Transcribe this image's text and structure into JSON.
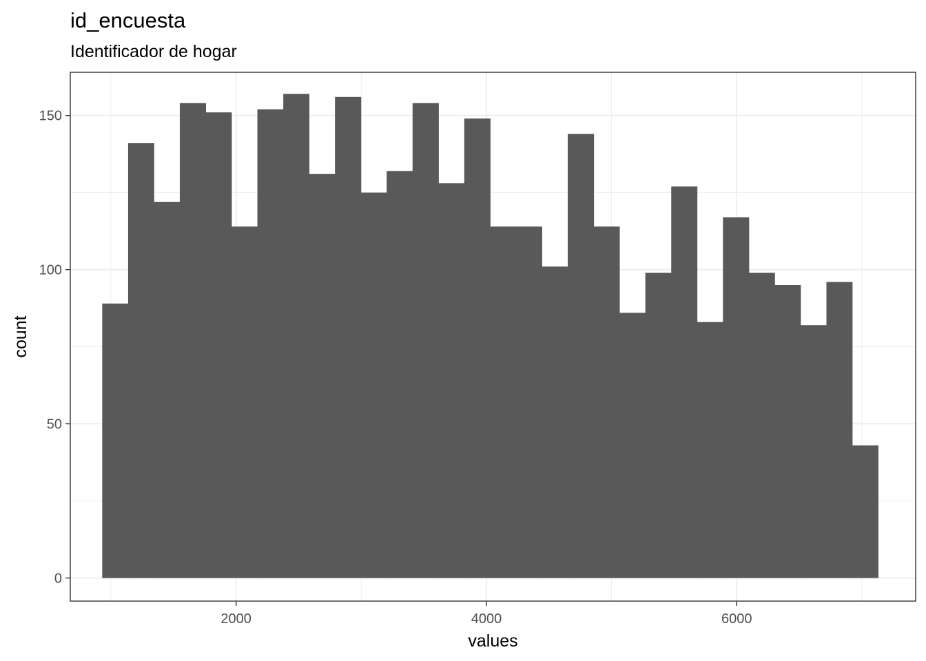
{
  "chart_data": {
    "type": "histogram",
    "title": "id_encuesta",
    "subtitle": "Identificador de hogar",
    "xlabel": "values",
    "ylabel": "count",
    "xlim": [
      675,
      7430
    ],
    "ylim": [
      -7.5,
      164
    ],
    "x_ticks": [
      2000,
      4000,
      6000
    ],
    "x_minor": [
      1000,
      3000,
      5000,
      7000
    ],
    "y_ticks": [
      0,
      50,
      100,
      150
    ],
    "y_minor": [
      25,
      75,
      125
    ],
    "grid": true,
    "bar_color": "#595959",
    "grid_color": "#ebebeb",
    "bins": [
      {
        "x0": 930,
        "x1": 1137,
        "count": 89
      },
      {
        "x0": 1137,
        "x1": 1343,
        "count": 141
      },
      {
        "x0": 1343,
        "x1": 1550,
        "count": 122
      },
      {
        "x0": 1550,
        "x1": 1757,
        "count": 154
      },
      {
        "x0": 1757,
        "x1": 1963,
        "count": 151
      },
      {
        "x0": 1963,
        "x1": 2170,
        "count": 114
      },
      {
        "x0": 2170,
        "x1": 2377,
        "count": 152
      },
      {
        "x0": 2377,
        "x1": 2583,
        "count": 157
      },
      {
        "x0": 2583,
        "x1": 2790,
        "count": 131
      },
      {
        "x0": 2790,
        "x1": 2997,
        "count": 156
      },
      {
        "x0": 2997,
        "x1": 3203,
        "count": 125
      },
      {
        "x0": 3203,
        "x1": 3410,
        "count": 132
      },
      {
        "x0": 3410,
        "x1": 3617,
        "count": 154
      },
      {
        "x0": 3617,
        "x1": 3823,
        "count": 128
      },
      {
        "x0": 3823,
        "x1": 4030,
        "count": 149
      },
      {
        "x0": 4030,
        "x1": 4237,
        "count": 114
      },
      {
        "x0": 4237,
        "x1": 4443,
        "count": 114
      },
      {
        "x0": 4443,
        "x1": 4650,
        "count": 101
      },
      {
        "x0": 4650,
        "x1": 4857,
        "count": 144
      },
      {
        "x0": 4857,
        "x1": 5063,
        "count": 114
      },
      {
        "x0": 5063,
        "x1": 5270,
        "count": 86
      },
      {
        "x0": 5270,
        "x1": 5477,
        "count": 99
      },
      {
        "x0": 5477,
        "x1": 5683,
        "count": 127
      },
      {
        "x0": 5683,
        "x1": 5890,
        "count": 83
      },
      {
        "x0": 5890,
        "x1": 6097,
        "count": 117
      },
      {
        "x0": 6097,
        "x1": 6303,
        "count": 99
      },
      {
        "x0": 6303,
        "x1": 6510,
        "count": 95
      },
      {
        "x0": 6510,
        "x1": 6717,
        "count": 82
      },
      {
        "x0": 6717,
        "x1": 6923,
        "count": 96
      },
      {
        "x0": 6923,
        "x1": 7130,
        "count": 43
      }
    ]
  }
}
